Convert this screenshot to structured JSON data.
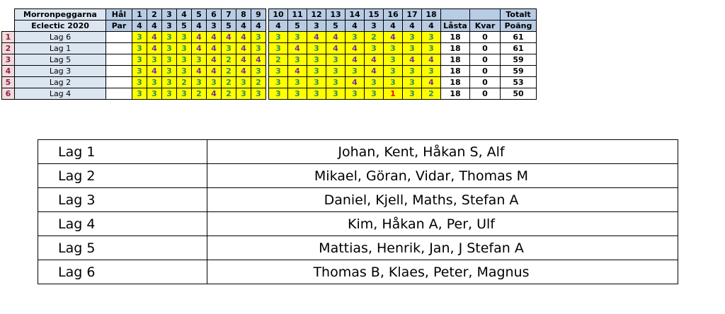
{
  "grid": {
    "title_line1": "Morronpeggarna",
    "title_line2": "Eclectic 2020",
    "hal_label": "Hål",
    "par_label": "Par",
    "holes_front": [
      "1",
      "2",
      "3",
      "4",
      "5",
      "6",
      "7",
      "8",
      "9"
    ],
    "holes_back": [
      "10",
      "11",
      "12",
      "13",
      "14",
      "15",
      "16",
      "17",
      "18"
    ],
    "par_front": [
      "4",
      "4",
      "3",
      "5",
      "4",
      "3",
      "5",
      "4",
      "4"
    ],
    "par_back": [
      "4",
      "5",
      "3",
      "5",
      "4",
      "3",
      "4",
      "4",
      "4"
    ],
    "lasta_label": "Låsta",
    "kvar_label": "Kvar",
    "totalt_label": "Totalt",
    "poang_label": "Poäng",
    "rows": [
      {
        "rank": "1",
        "team": "Lag 6",
        "front": [
          "3",
          "4",
          "3",
          "3",
          "4",
          "4",
          "4",
          "4",
          "3"
        ],
        "back": [
          "3",
          "3",
          "4",
          "4",
          "3",
          "2",
          "4",
          "3",
          "3"
        ],
        "lasta": "18",
        "kvar": "0",
        "poang": "61"
      },
      {
        "rank": "2",
        "team": "Lag 1",
        "front": [
          "3",
          "4",
          "3",
          "3",
          "4",
          "4",
          "3",
          "4",
          "3"
        ],
        "back": [
          "3",
          "4",
          "3",
          "4",
          "4",
          "3",
          "3",
          "3",
          "3"
        ],
        "lasta": "18",
        "kvar": "0",
        "poang": "61"
      },
      {
        "rank": "3",
        "team": "Lag 5",
        "front": [
          "3",
          "3",
          "3",
          "3",
          "3",
          "4",
          "2",
          "4",
          "4"
        ],
        "back": [
          "2",
          "3",
          "3",
          "3",
          "4",
          "4",
          "3",
          "4",
          "4"
        ],
        "lasta": "18",
        "kvar": "0",
        "poang": "59"
      },
      {
        "rank": "4",
        "team": "Lag 3",
        "front": [
          "3",
          "4",
          "3",
          "3",
          "4",
          "4",
          "2",
          "4",
          "3"
        ],
        "back": [
          "3",
          "4",
          "3",
          "3",
          "3",
          "4",
          "3",
          "3",
          "3"
        ],
        "lasta": "18",
        "kvar": "0",
        "poang": "59"
      },
      {
        "rank": "5",
        "team": "Lag 2",
        "front": [
          "3",
          "3",
          "3",
          "2",
          "3",
          "3",
          "2",
          "3",
          "2"
        ],
        "back": [
          "3",
          "3",
          "3",
          "3",
          "4",
          "3",
          "3",
          "3",
          "4"
        ],
        "lasta": "18",
        "kvar": "0",
        "poang": "53"
      },
      {
        "rank": "6",
        "team": "Lag 4",
        "front": [
          "3",
          "3",
          "3",
          "3",
          "2",
          "4",
          "2",
          "3",
          "3"
        ],
        "back": [
          "3",
          "3",
          "3",
          "3",
          "3",
          "3",
          "1",
          "3",
          "2"
        ],
        "lasta": "18",
        "kvar": "0",
        "poang": "50"
      }
    ]
  },
  "members": [
    {
      "lag": "Lag 1",
      "names": "Johan, Kent, Håkan S, Alf"
    },
    {
      "lag": "Lag 2",
      "names": "Mikael, Göran, Vidar, Thomas M"
    },
    {
      "lag": "Lag 3",
      "names": "Daniel, Kjell, Maths, Stefan A"
    },
    {
      "lag": "Lag 4",
      "names": "Kim, Håkan A, Per, Ulf"
    },
    {
      "lag": "Lag 5",
      "names": "Mattias, Henrik, Jan, J Stefan A"
    },
    {
      "lag": "Lag 6",
      "names": "Thomas B, Klaes, Peter, Magnus"
    }
  ]
}
